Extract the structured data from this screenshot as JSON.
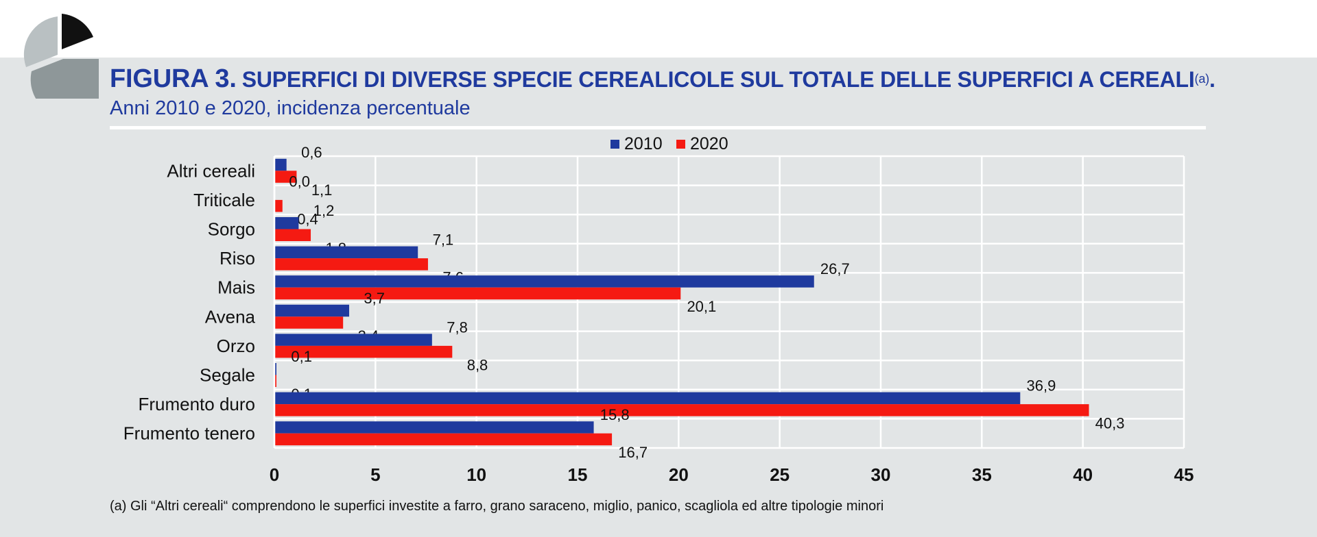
{
  "header": {
    "figure_label": "FIGURA 3.",
    "title": "SUPERFICI DI DIVERSE SPECIE CEREALICOLE SUL TOTALE DELLE SUPERFICI A CEREALI",
    "title_note_ref": "(a)",
    "title_end": ".",
    "subtitle": "Anni 2010 e 2020, incidenza percentuale"
  },
  "logo": {
    "icon": "pie-chart-icon",
    "colors": [
      "#b9c0c2",
      "#8e9799",
      "#111111"
    ]
  },
  "chart_data": {
    "type": "bar",
    "orientation": "horizontal",
    "title": "",
    "xlabel": "",
    "ylabel": "",
    "categories": [
      "Altri cereali",
      "Triticale",
      "Sorgo",
      "Riso",
      "Mais",
      "Avena",
      "Orzo",
      "Segale",
      "Frumento duro",
      "Frumento tenero"
    ],
    "series": [
      {
        "name": "2010",
        "color": "#1f3a9e",
        "values": [
          0.6,
          0.0,
          1.2,
          7.1,
          26.7,
          3.7,
          7.8,
          0.1,
          36.9,
          15.8
        ],
        "labels": [
          "0,6",
          "0,0",
          "1,2",
          "7,1",
          "26,7",
          "3,7",
          "7,8",
          "0,1",
          "36,9",
          "15,8"
        ]
      },
      {
        "name": "2020",
        "color": "#f51a12",
        "values": [
          1.1,
          0.4,
          1.8,
          7.6,
          20.1,
          3.4,
          8.8,
          0.1,
          40.3,
          16.7
        ],
        "labels": [
          "1,1",
          "0,4",
          "1,8",
          "7,6",
          "20,1",
          "3,4",
          "8,8",
          "0,1",
          "40,3",
          "16,7"
        ]
      }
    ],
    "xlim": [
      0,
      45
    ],
    "xticks": [
      "0",
      "5",
      "10",
      "15",
      "20",
      "25",
      "30",
      "35",
      "40",
      "45"
    ],
    "grid": true,
    "legend_position": "top-center"
  },
  "footnote": "(a) Gli “Altri cereali“ comprendono le superfici investite a farro, grano saraceno, miglio, panico, scagliola ed altre tipologie minori"
}
